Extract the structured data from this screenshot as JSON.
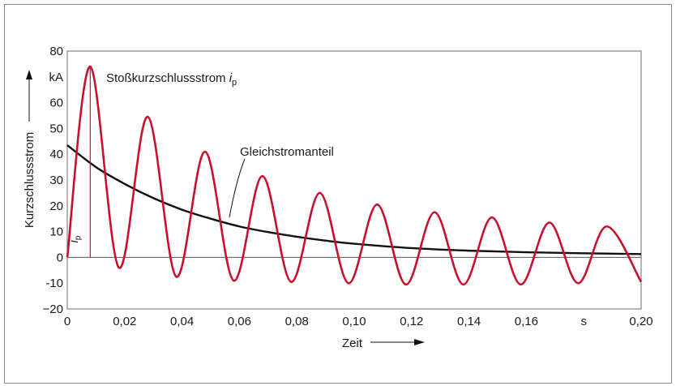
{
  "chart_data": {
    "type": "line",
    "xlabel": "Zeit",
    "ylabel": "Kurzschlussstrom",
    "xlim": [
      0,
      0.2
    ],
    "ylim": [
      -20,
      80
    ],
    "x_ticks": [
      {
        "value": 0,
        "label": "0"
      },
      {
        "value": 0.02,
        "label": "0,02"
      },
      {
        "value": 0.04,
        "label": "0,04"
      },
      {
        "value": 0.06,
        "label": "0,06"
      },
      {
        "value": 0.08,
        "label": "0,08"
      },
      {
        "value": 0.1,
        "label": "0,10"
      },
      {
        "value": 0.12,
        "label": "0,12"
      },
      {
        "value": 0.14,
        "label": "0,14"
      },
      {
        "value": 0.16,
        "label": "0,16"
      },
      {
        "value": 0.18,
        "label": "s"
      },
      {
        "value": 0.2,
        "label": "0,20"
      }
    ],
    "y_ticks": [
      {
        "value": 80,
        "label": "80"
      },
      {
        "value": 70,
        "label": "kA"
      },
      {
        "value": 60,
        "label": "60"
      },
      {
        "value": 50,
        "label": "50"
      },
      {
        "value": 40,
        "label": "40"
      },
      {
        "value": 30,
        "label": "30"
      },
      {
        "value": 20,
        "label": "20"
      },
      {
        "value": 10,
        "label": "10"
      },
      {
        "value": 0,
        "label": "0"
      },
      {
        "value": -10,
        "label": "-10"
      },
      {
        "value": -20,
        "label": "−20"
      }
    ],
    "x_zero_label": "0",
    "series": [
      {
        "name": "Kurzschlussstrom",
        "color": "#c8102e",
        "points": [
          [
            0,
            0
          ],
          [
            0.008,
            74
          ],
          [
            0.018,
            -4
          ],
          [
            0.028,
            54.5
          ],
          [
            0.038,
            -7.5
          ],
          [
            0.048,
            41
          ],
          [
            0.058,
            -9
          ],
          [
            0.068,
            31.5
          ],
          [
            0.078,
            -9.5
          ],
          [
            0.088,
            25
          ],
          [
            0.098,
            -10
          ],
          [
            0.108,
            20.5
          ],
          [
            0.118,
            -10.5
          ],
          [
            0.128,
            17.5
          ],
          [
            0.138,
            -10.5
          ],
          [
            0.148,
            15.5
          ],
          [
            0.158,
            -10.5
          ],
          [
            0.168,
            13.5
          ],
          [
            0.178,
            -10
          ],
          [
            0.188,
            12
          ],
          [
            0.2,
            -9.5
          ]
        ]
      },
      {
        "name": "Gleichstromanteil",
        "color": "#111111",
        "points": [
          [
            0,
            43.5
          ],
          [
            0.01,
            35
          ],
          [
            0.02,
            28.5
          ],
          [
            0.03,
            23
          ],
          [
            0.04,
            18.5
          ],
          [
            0.05,
            15
          ],
          [
            0.06,
            12
          ],
          [
            0.07,
            9.8
          ],
          [
            0.08,
            8
          ],
          [
            0.09,
            6.5
          ],
          [
            0.1,
            5.3
          ],
          [
            0.12,
            3.6
          ],
          [
            0.14,
            2.6
          ],
          [
            0.16,
            2
          ],
          [
            0.18,
            1.6
          ],
          [
            0.2,
            1.3
          ]
        ]
      }
    ],
    "peak": {
      "x": 0.008,
      "y": 74,
      "label": "ip"
    },
    "annotations": [
      {
        "text_main": "Stoßkurzschlussstrom ",
        "text_var": "i",
        "text_sub": "p"
      },
      {
        "text_main": "Gleichstromanteil"
      }
    ],
    "marker_label_main": "i",
    "marker_label_sub": "p"
  }
}
